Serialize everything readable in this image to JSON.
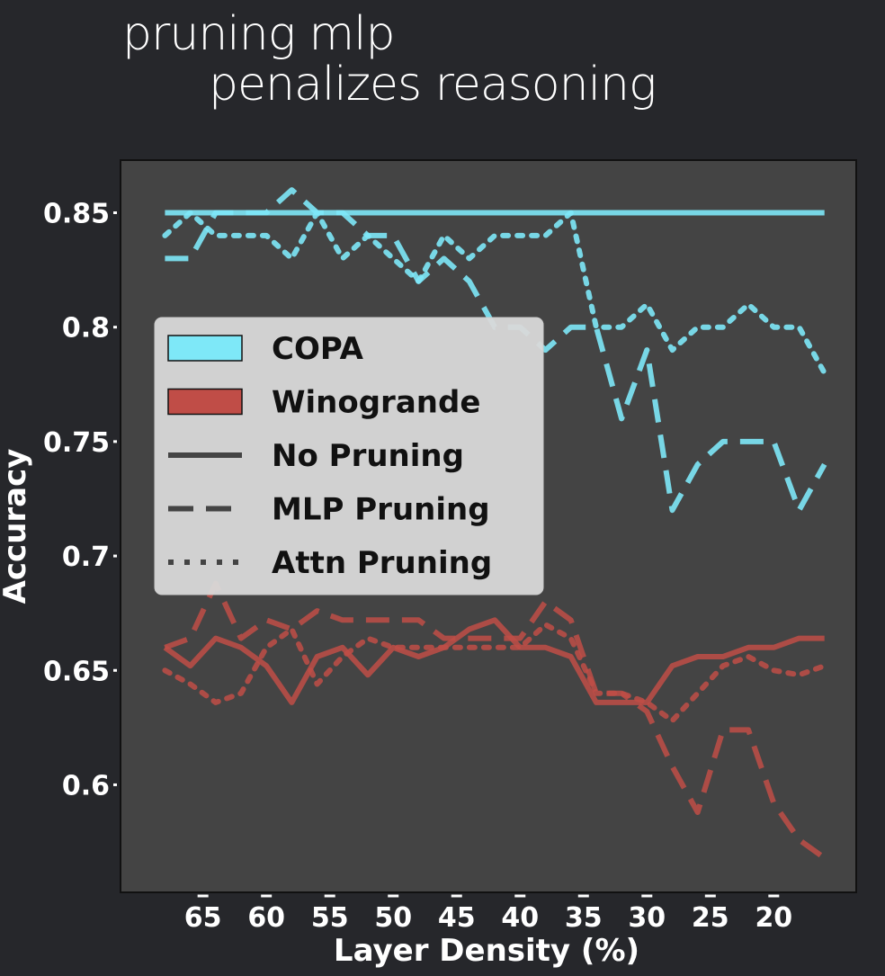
{
  "title": {
    "line1": "pruning mlp",
    "line2": "penalizes reasoning"
  },
  "colors": {
    "background": "#26272b",
    "plot_background": "#444444",
    "copa": "#7ee8f8",
    "winogrande": "#c04d47",
    "legend_background": "#d9d9d9",
    "text": "#ffffff"
  },
  "chart_data": {
    "type": "line",
    "xlabel": "Layer Density (%)",
    "ylabel": "Accuracy",
    "x_ticks": [
      65,
      60,
      55,
      50,
      45,
      40,
      35,
      30,
      25,
      20
    ],
    "y_ticks": [
      0.6,
      0.65,
      0.7,
      0.75,
      0.8,
      0.85
    ],
    "y_tick_labels": [
      "0.6",
      "0.65",
      "0.7",
      "0.75",
      "0.8",
      "0.85"
    ],
    "xlim": [
      71.5,
      13.5
    ],
    "ylim": [
      0.553,
      0.873
    ],
    "x_direction": "descending",
    "legend": {
      "position": "center-left",
      "entries": [
        {
          "label": "COPA",
          "kind": "patch",
          "color_key": "copa"
        },
        {
          "label": "Winogrande",
          "kind": "patch",
          "color_key": "winogrande"
        },
        {
          "label": "No Pruning",
          "kind": "line",
          "style": "solid"
        },
        {
          "label": "MLP Pruning",
          "kind": "line",
          "style": "dashed"
        },
        {
          "label": "Attn Pruning",
          "kind": "line",
          "style": "dotted"
        }
      ]
    },
    "x": [
      68,
      66,
      64,
      62,
      60,
      58,
      56,
      54,
      52,
      50,
      48,
      46,
      44,
      42,
      40,
      38,
      36,
      34,
      32,
      30,
      28,
      26,
      24,
      22,
      20,
      18,
      16
    ],
    "series": [
      {
        "dataset": "COPA",
        "pruning": "No Pruning",
        "style": "solid",
        "color_key": "copa",
        "values": [
          0.85,
          0.85,
          0.85,
          0.85,
          0.85,
          0.85,
          0.85,
          0.85,
          0.85,
          0.85,
          0.85,
          0.85,
          0.85,
          0.85,
          0.85,
          0.85,
          0.85,
          0.85,
          0.85,
          0.85,
          0.85,
          0.85,
          0.85,
          0.85,
          0.85,
          0.85,
          0.85
        ]
      },
      {
        "dataset": "COPA",
        "pruning": "MLP Pruning",
        "style": "dashed",
        "color_key": "copa",
        "values": [
          0.83,
          0.83,
          0.85,
          0.85,
          0.85,
          0.86,
          0.85,
          0.85,
          0.84,
          0.84,
          0.82,
          0.83,
          0.82,
          0.8,
          0.8,
          0.79,
          0.8,
          0.8,
          0.76,
          0.79,
          0.72,
          0.74,
          0.75,
          0.75,
          0.75,
          0.72,
          0.74
        ]
      },
      {
        "dataset": "COPA",
        "pruning": "Attn Pruning",
        "style": "dotted",
        "color_key": "copa",
        "values": [
          0.84,
          0.85,
          0.84,
          0.84,
          0.84,
          0.83,
          0.85,
          0.83,
          0.84,
          0.83,
          0.82,
          0.84,
          0.83,
          0.84,
          0.84,
          0.84,
          0.85,
          0.8,
          0.8,
          0.81,
          0.79,
          0.8,
          0.8,
          0.81,
          0.8,
          0.8,
          0.78
        ]
      },
      {
        "dataset": "Winogrande",
        "pruning": "No Pruning",
        "style": "solid",
        "color_key": "winogrande",
        "values": [
          0.66,
          0.652,
          0.664,
          0.66,
          0.652,
          0.636,
          0.656,
          0.66,
          0.648,
          0.66,
          0.656,
          0.66,
          0.668,
          0.672,
          0.66,
          0.66,
          0.656,
          0.636,
          0.636,
          0.636,
          0.652,
          0.656,
          0.656,
          0.66,
          0.66,
          0.664,
          0.664
        ]
      },
      {
        "dataset": "Winogrande",
        "pruning": "MLP Pruning",
        "style": "dashed",
        "color_key": "winogrande",
        "values": [
          0.66,
          0.664,
          0.688,
          0.664,
          0.672,
          0.668,
          0.676,
          0.672,
          0.672,
          0.672,
          0.672,
          0.664,
          0.664,
          0.664,
          0.664,
          0.68,
          0.672,
          0.64,
          0.64,
          0.632,
          0.608,
          0.588,
          0.624,
          0.624,
          0.592,
          0.576,
          0.568
        ]
      },
      {
        "dataset": "Winogrande",
        "pruning": "Attn Pruning",
        "style": "dotted",
        "color_key": "winogrande",
        "values": [
          0.65,
          0.644,
          0.636,
          0.64,
          0.66,
          0.668,
          0.644,
          0.656,
          0.664,
          0.66,
          0.66,
          0.66,
          0.66,
          0.66,
          0.66,
          0.67,
          0.664,
          0.64,
          0.64,
          0.636,
          0.628,
          0.64,
          0.652,
          0.656,
          0.65,
          0.648,
          0.652
        ]
      }
    ]
  }
}
